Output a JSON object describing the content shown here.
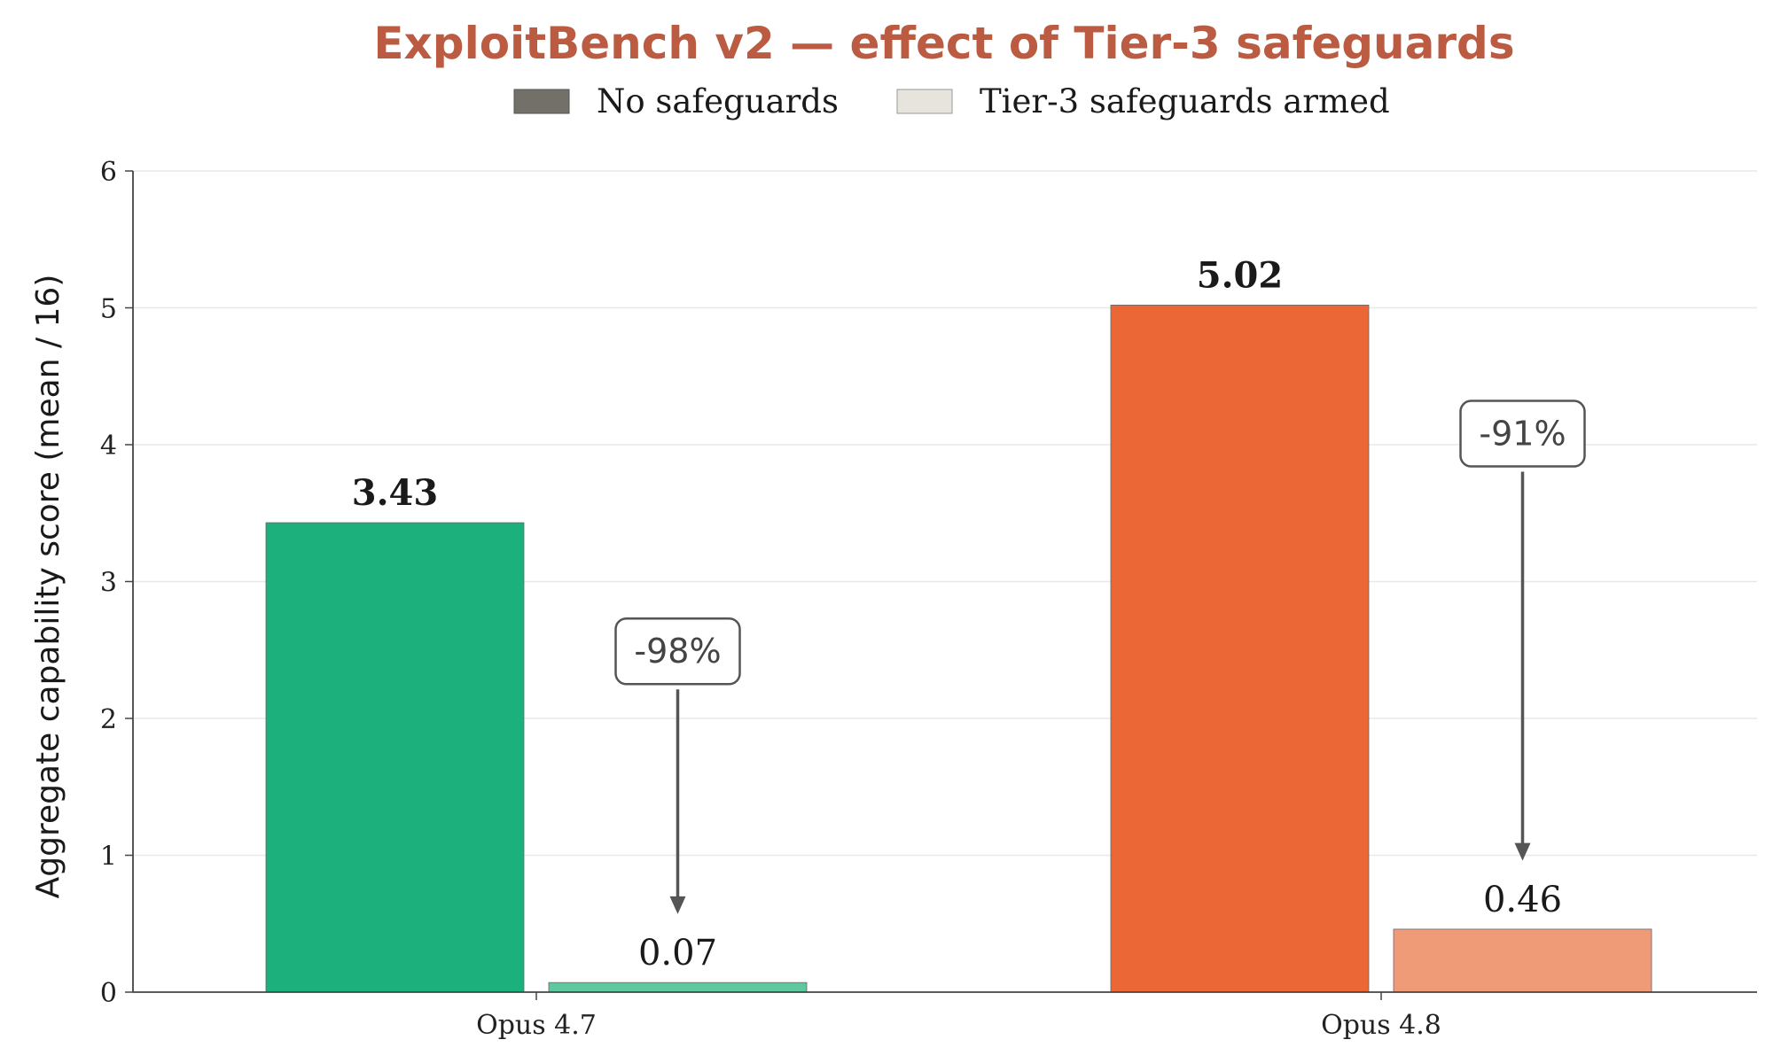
{
  "chart_data": {
    "type": "bar",
    "title": "ExploitBench v2 — effect of Tier-3 safeguards",
    "xlabel": "",
    "ylabel": "Aggregate capability score (mean / 16)",
    "categories": [
      "Opus 4.7",
      "Opus 4.8"
    ],
    "series": [
      {
        "name": "No safeguards",
        "values": [
          3.43,
          5.02
        ],
        "colors": [
          "#1cb07c",
          "#eb6836"
        ],
        "legend_color": "#727069"
      },
      {
        "name": "Tier-3 safeguards armed",
        "values": [
          0.07,
          0.46
        ],
        "colors": [
          "#5ec89f",
          "#ef9b78"
        ],
        "legend_color": "#e6e4dd"
      }
    ],
    "value_labels": [
      [
        "3.43",
        "5.02"
      ],
      [
        "0.07",
        "0.46"
      ]
    ],
    "annotations": [
      "-98%",
      "-91%"
    ],
    "ylim": [
      0,
      6
    ],
    "yticks": [
      "0",
      "1",
      "2",
      "3",
      "4",
      "5",
      "6"
    ],
    "grid": true,
    "legend_position": "top-center",
    "title_color": "#bb5b41"
  }
}
